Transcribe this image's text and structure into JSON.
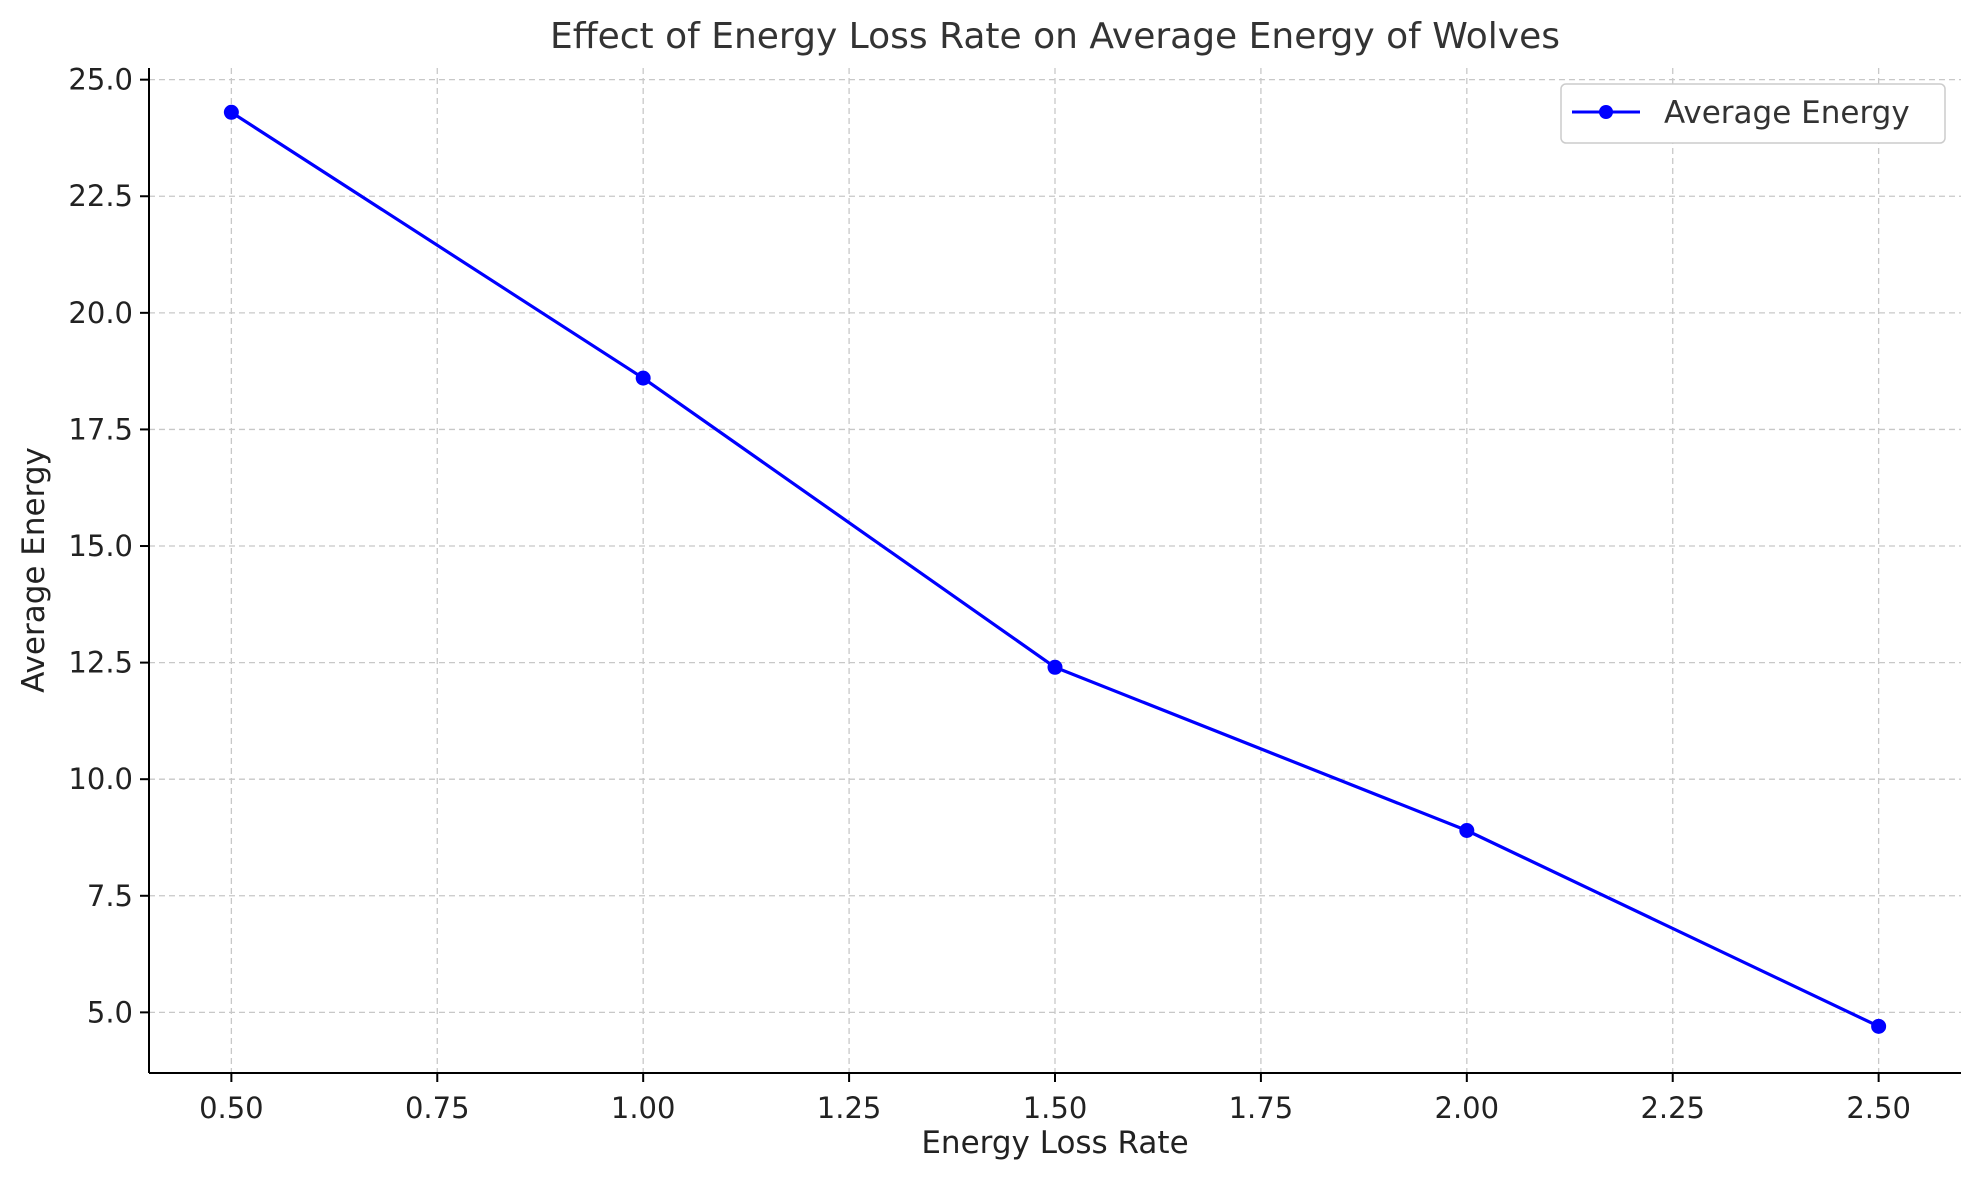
{
  "chart_data": {
    "type": "line",
    "title": "Effect of Energy Loss Rate on Average Energy of Wolves",
    "xlabel": "Energy Loss Rate",
    "ylabel": "Average Energy",
    "xlim": [
      0.4,
      2.6
    ],
    "ylim": [
      3.7,
      25.25
    ],
    "x_ticks": [
      0.5,
      0.75,
      1.0,
      1.25,
      1.5,
      1.75,
      2.0,
      2.25,
      2.5
    ],
    "x_tick_labels": [
      "0.50",
      "0.75",
      "1.00",
      "1.25",
      "1.50",
      "1.75",
      "2.00",
      "2.25",
      "2.50"
    ],
    "y_ticks": [
      5.0,
      7.5,
      10.0,
      12.5,
      15.0,
      17.5,
      20.0,
      22.5,
      25.0
    ],
    "y_tick_labels": [
      "5.0",
      "7.5",
      "10.0",
      "12.5",
      "15.0",
      "17.5",
      "20.0",
      "22.5",
      "25.0"
    ],
    "grid": true,
    "legend_position": "top-right",
    "series": [
      {
        "name": "Average Energy",
        "color": "#0000ff",
        "marker": "circle",
        "x": [
          0.5,
          1.0,
          1.5,
          2.0,
          2.5
        ],
        "y": [
          24.3,
          18.6,
          12.4,
          8.9,
          4.7
        ]
      }
    ]
  }
}
